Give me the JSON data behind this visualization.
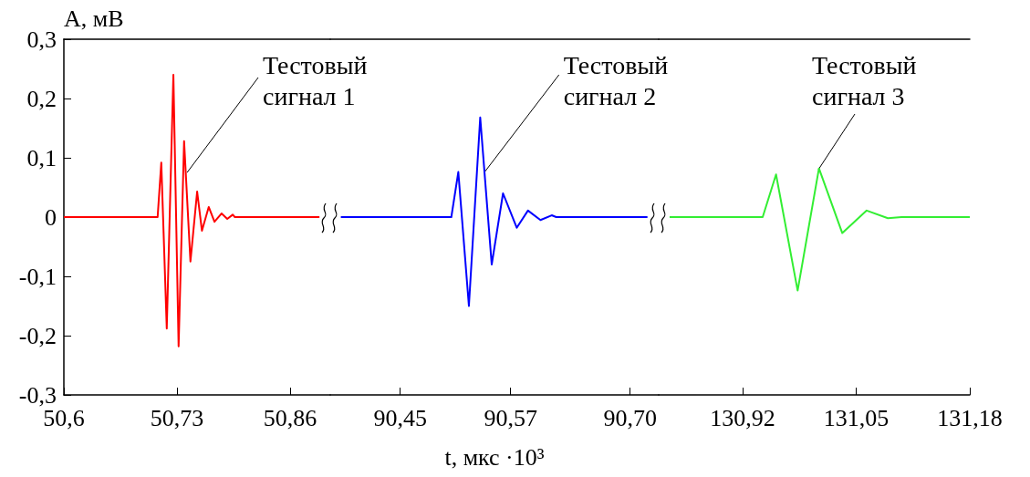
{
  "chart_data": [
    {
      "type": "line",
      "ylabel": "A, мВ",
      "color": "#ff0000",
      "xlim": [
        50.6,
        50.906
      ],
      "ylim": [
        -0.3,
        0.3
      ],
      "xticks": [
        {
          "value": 50.6,
          "label": "50,6"
        },
        {
          "value": 50.73,
          "label": "50,73"
        },
        {
          "value": 50.86,
          "label": "50,86"
        }
      ],
      "yticks": [
        {
          "value": -0.3,
          "label": "-0,3"
        },
        {
          "value": -0.2,
          "label": "-0,2"
        },
        {
          "value": -0.1,
          "label": "-0,1"
        },
        0,
        {
          "value": 0.1,
          "label": "0,1"
        },
        {
          "value": 0.2,
          "label": "0,2"
        },
        {
          "value": 0.3,
          "label": "0,3"
        }
      ],
      "x": [
        50.6,
        50.7077,
        50.7119,
        50.7182,
        50.7258,
        50.7318,
        50.7381,
        50.7454,
        50.7531,
        50.7586,
        50.7664,
        50.773,
        50.7811,
        50.7877,
        50.794,
        50.7964,
        50.8936
      ],
      "values": [
        0,
        0,
        0.092,
        -0.188,
        0.24,
        -0.218,
        0.128,
        -0.075,
        0.043,
        -0.023,
        0.017,
        -0.008,
        0.006,
        -0.003,
        0.004,
        0,
        0
      ],
      "annotations": [
        {
          "text": "Тестовый сигнал 1",
          "x": 50.7415,
          "y": 0.075
        }
      ]
    },
    {
      "type": "line",
      "xlabel": "t, мкс ·10³",
      "color": "#0000ff",
      "xlim": [
        90.374,
        90.731
      ],
      "ylim": [
        -0.3,
        0.3
      ],
      "tick_labels": "x",
      "xticks": [
        {
          "value": 90.45,
          "label": "90,45"
        },
        {
          "value": 90.57,
          "label": "90,57"
        },
        {
          "value": 90.7,
          "label": "90,70"
        }
      ],
      "x": [
        90.3855,
        90.5056,
        90.5132,
        90.5247,
        90.537,
        90.5495,
        90.5618,
        90.5767,
        90.5889,
        90.6025,
        90.6147,
        90.6196,
        90.7188
      ],
      "values": [
        0,
        0,
        0.076,
        -0.15,
        0.168,
        -0.08,
        0.04,
        -0.018,
        0.011,
        -0.005,
        0.003,
        0,
        0
      ],
      "annotations": [
        {
          "text": "Тестовый сигнал 2",
          "x": 90.5413,
          "y": 0.075
        }
      ]
    },
    {
      "type": "line",
      "color": "#33ee33",
      "xlim": [
        130.824,
        131.18
      ],
      "ylim": [
        -0.3,
        0.3
      ],
      "tick_labels": "x",
      "xticks": [
        {
          "value": 130.92,
          "label": "130,92"
        },
        {
          "value": 131.05,
          "label": "131,05"
        },
        {
          "value": 131.18,
          "label": "131,18"
        }
      ],
      "x": [
        130.8365,
        130.943,
        130.9583,
        130.983,
        131.0074,
        131.0341,
        131.062,
        131.0863,
        131.102,
        131.18
      ],
      "values": [
        0,
        0,
        0.072,
        -0.124,
        0.082,
        -0.027,
        0.011,
        -0.002,
        0,
        0
      ],
      "annotations": [
        {
          "text": "Тестовый сигнал 3",
          "x": 131.0067,
          "y": 0.08
        }
      ]
    }
  ]
}
